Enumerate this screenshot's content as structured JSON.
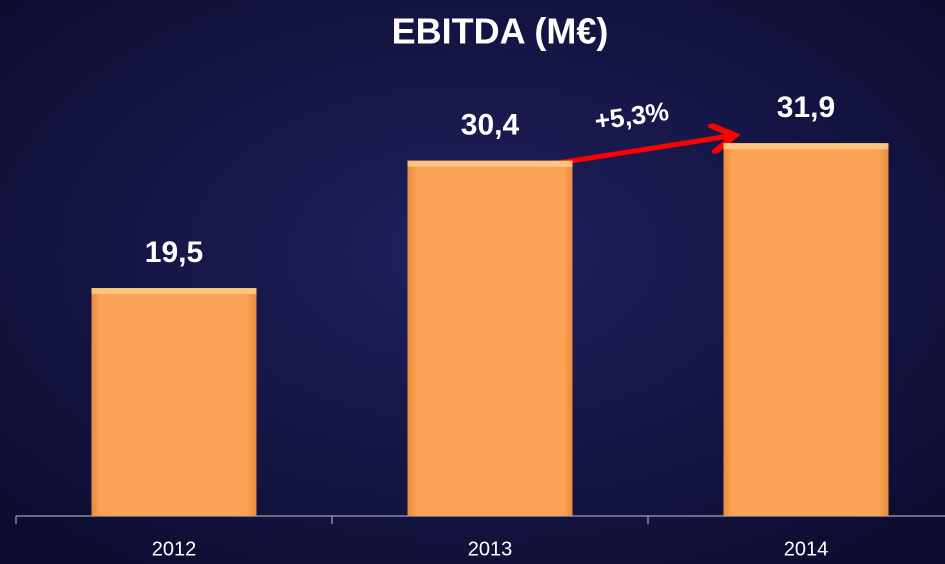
{
  "chart_data": {
    "type": "bar",
    "title": "EBITDA (M€)",
    "categories": [
      "2012",
      "2013",
      "2014"
    ],
    "values": [
      19.5,
      30.4,
      31.9
    ],
    "value_labels": [
      "19,5",
      "30,4",
      "31,9"
    ],
    "color": "#f9a04f",
    "ylim": [
      0,
      35
    ],
    "annotations": [
      {
        "text": "+5,3%"
      }
    ]
  }
}
